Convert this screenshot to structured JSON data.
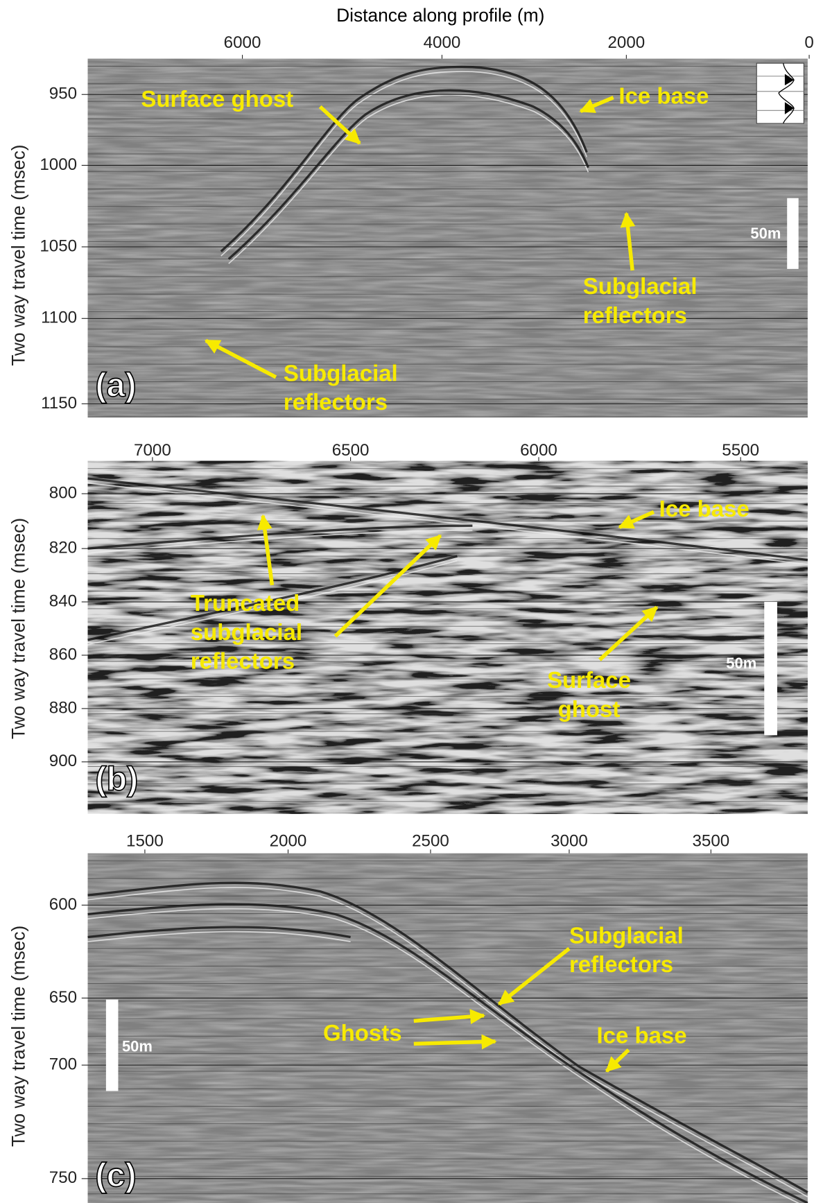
{
  "x_axis_title": "Distance along profile (m)",
  "panels": [
    {
      "label": "(a)",
      "y_label": "Two way travel time (msec)",
      "xticks": [
        6000,
        4000,
        2000,
        0
      ],
      "yticks": [
        950,
        1000,
        1050,
        1100,
        1150
      ],
      "scale_bar": "50m",
      "annotations": [
        {
          "lines": [
            "Surface ghost"
          ]
        },
        {
          "lines": [
            "Ice base"
          ]
        },
        {
          "lines": [
            "Subglacial",
            "reflectors"
          ]
        },
        {
          "lines": [
            "Subglacial",
            "reflectors"
          ]
        }
      ]
    },
    {
      "label": "(b)",
      "y_label": "Two way travel time (msec)",
      "xticks": [
        7000,
        6500,
        6000,
        5500
      ],
      "yticks": [
        800,
        820,
        840,
        860,
        880,
        900
      ],
      "scale_bar": "50m",
      "annotations": [
        {
          "lines": [
            "Ice base"
          ]
        },
        {
          "lines": [
            "Truncated",
            "subglacial",
            "reflectors"
          ]
        },
        {
          "lines": [
            "Surface",
            "ghost"
          ]
        }
      ]
    },
    {
      "label": "(c)",
      "y_label": "Two way travel time (msec)",
      "xticks": [
        1500,
        2000,
        2500,
        3000,
        3500
      ],
      "yticks": [
        600,
        650,
        700,
        750
      ],
      "scale_bar": "50m",
      "annotations": [
        {
          "lines": [
            "Subglacial",
            "reflectors"
          ]
        },
        {
          "lines": [
            "Ghosts"
          ]
        },
        {
          "lines": [
            "Ice base"
          ]
        }
      ]
    }
  ]
}
